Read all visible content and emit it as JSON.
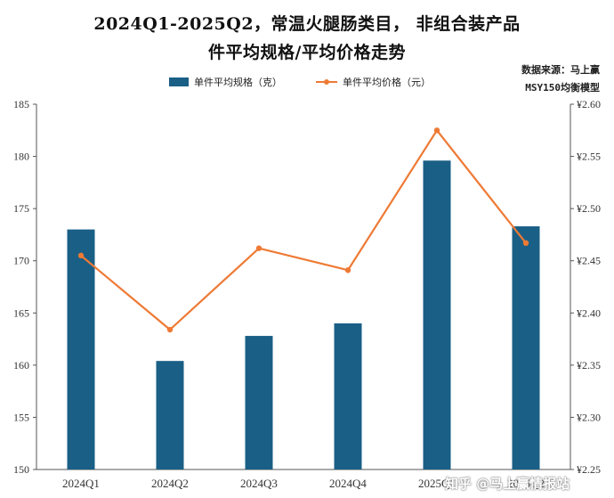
{
  "title_line1": "2024Q1-2025Q2，常温火腿肠类目， 非组合装产品",
  "title_line2": "件平均规格/平均价格走势",
  "source_line1": "数据来源：马上赢",
  "source_line2": "MSY150均衡模型",
  "watermark": "知乎 @马上赢情报站",
  "colors": {
    "bar": "#1a5f86",
    "line": "#ee7a35",
    "axis": "#555555"
  },
  "chart_data": {
    "type": "bar",
    "categories": [
      "2024Q1",
      "2024Q2",
      "2024Q3",
      "2024Q4",
      "2025Q1",
      "2025Q2"
    ],
    "series": [
      {
        "name": "单件平均规格（克）",
        "type": "bar",
        "axis": "left",
        "values": [
          173.0,
          160.4,
          162.8,
          164.0,
          179.6,
          173.3
        ]
      },
      {
        "name": "单件平均价格（元）",
        "type": "line",
        "axis": "right",
        "values": [
          2.455,
          2.384,
          2.462,
          2.441,
          2.575,
          2.467
        ]
      }
    ],
    "ylim_left": [
      150,
      185
    ],
    "yticks_left": [
      "150",
      "155",
      "160",
      "165",
      "170",
      "175",
      "180",
      "185"
    ],
    "ylim_right": [
      2.25,
      2.6
    ],
    "yticks_right": [
      "¥2.25",
      "¥2.30",
      "¥2.35",
      "¥2.40",
      "¥2.45",
      "¥2.50",
      "¥2.55",
      "¥2.60"
    ],
    "grid": false,
    "legend_position": "top"
  }
}
